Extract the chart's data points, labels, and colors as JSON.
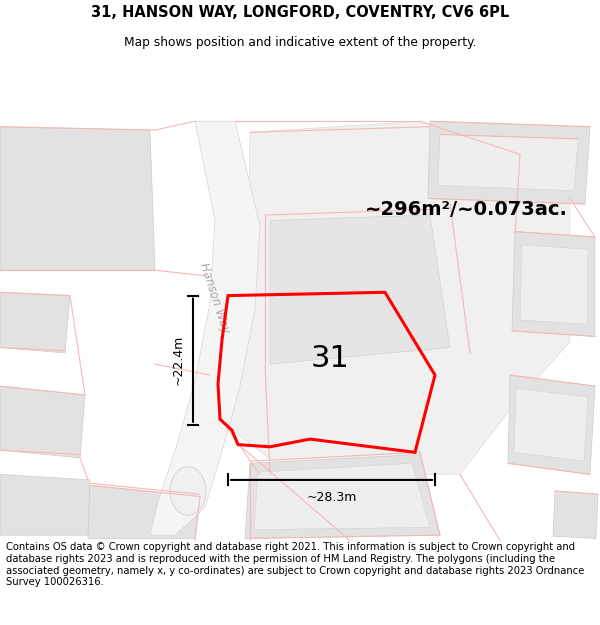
{
  "title": "31, HANSON WAY, LONGFORD, COVENTRY, CV6 6PL",
  "subtitle": "Map shows position and indicative extent of the property.",
  "footer": "Contains OS data © Crown copyright and database right 2021. This information is subject to Crown copyright and database rights 2023 and is reproduced with the permission of HM Land Registry. The polygons (including the associated geometry, namely x, y co-ordinates) are subject to Crown copyright and database rights 2023 Ordnance Survey 100026316.",
  "area_label": "~296m²/~0.073ac.",
  "number_label": "31",
  "dim_horizontal": "~28.3m",
  "dim_vertical": "~22.4m",
  "road_label": "Hanson Way",
  "plot_color": "#ff0000",
  "bld_fill": "#e2e2e2",
  "bld_outline": "#cccccc",
  "road_line": "#f5b8b8",
  "plot_line": "#e8c8c8",
  "title_fontsize": 11,
  "subtitle_fontsize": 9,
  "footer_fontsize": 7.2
}
